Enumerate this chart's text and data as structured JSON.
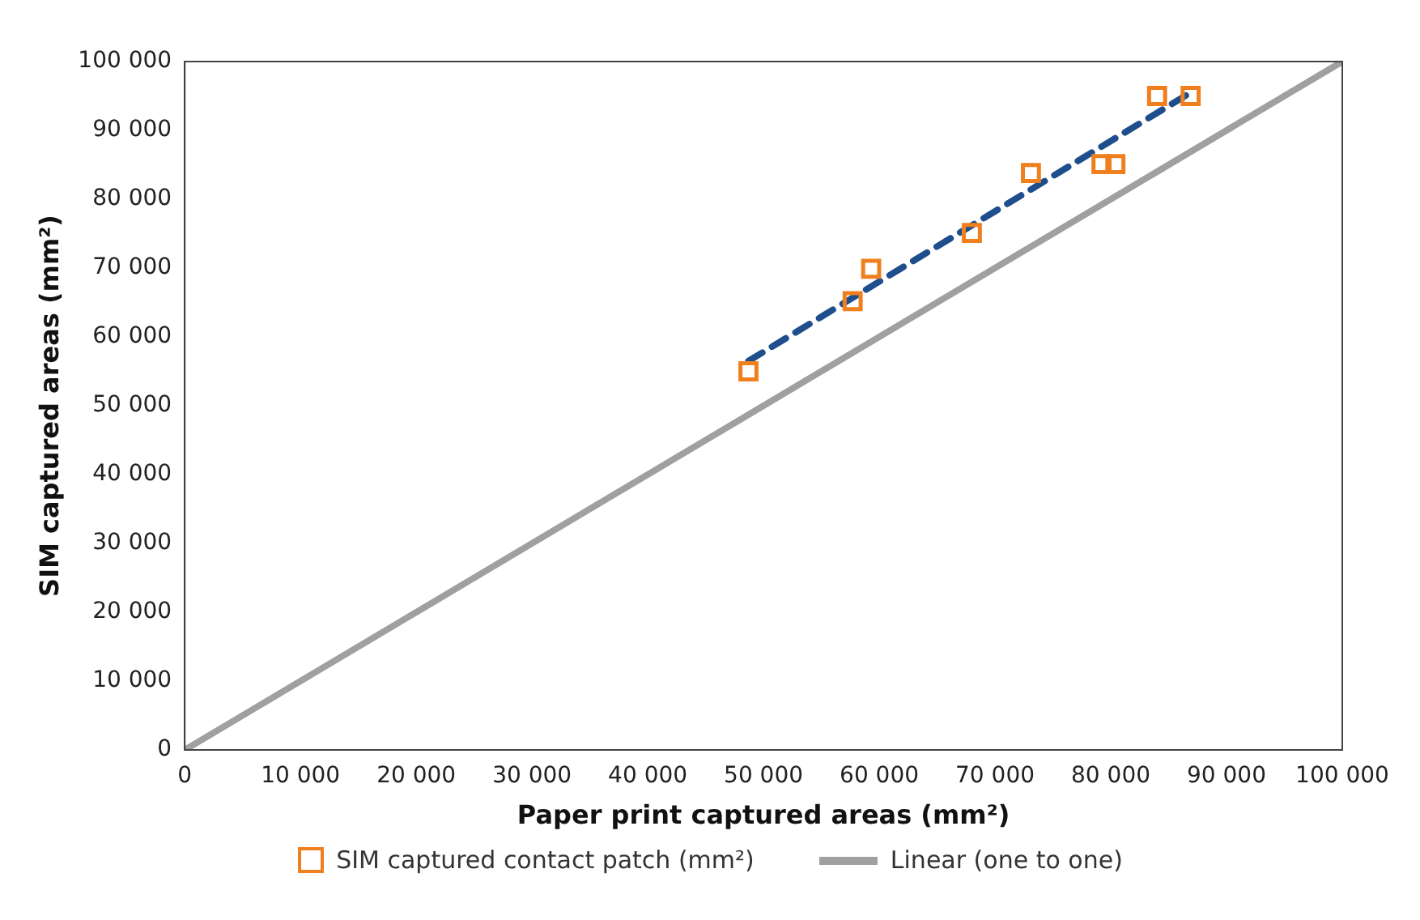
{
  "chart_data": {
    "type": "scatter",
    "xlabel": "Paper print captured areas (mm²)",
    "ylabel": "SIM captured areas (mm²)",
    "xlim": [
      0,
      100000
    ],
    "ylim": [
      0,
      100000
    ],
    "xticks": [
      0,
      {
        "value": 10000,
        "label": "10 000"
      },
      {
        "value": 20000,
        "label": "20 000"
      },
      {
        "value": 30000,
        "label": "30 000"
      },
      {
        "value": 40000,
        "label": "40 000"
      },
      {
        "value": 50000,
        "label": "50 000"
      },
      {
        "value": 60000,
        "label": "60 000"
      },
      {
        "value": 70000,
        "label": "70 000"
      },
      {
        "value": 80000,
        "label": "80 000"
      },
      {
        "value": 90000,
        "label": "90 000"
      },
      {
        "value": 100000,
        "label": "100 000"
      }
    ],
    "yticks": [
      0,
      {
        "value": 10000,
        "label": "10 000"
      },
      {
        "value": 20000,
        "label": "20 000"
      },
      {
        "value": 30000,
        "label": "30 000"
      },
      {
        "value": 40000,
        "label": "40 000"
      },
      {
        "value": 50000,
        "label": "50 000"
      },
      {
        "value": 60000,
        "label": "60 000"
      },
      {
        "value": 70000,
        "label": "70 000"
      },
      {
        "value": 80000,
        "label": "80 000"
      },
      {
        "value": 90000,
        "label": "90 000"
      },
      {
        "value": 100000,
        "label": "100 000"
      }
    ],
    "grid": false,
    "legend": "bottom",
    "series": [
      {
        "name": "SIM captured contact patch (mm²)",
        "marker": "square",
        "color": "#f07f1e",
        "x": [
          48700,
          57700,
          59300,
          68000,
          73100,
          79200,
          80400,
          84000,
          86900
        ],
        "values": [
          55000,
          65200,
          69900,
          75100,
          83800,
          85100,
          85100,
          95000,
          95000
        ]
      },
      {
        "type": "line",
        "marker": "none",
        "line_style": "dashed",
        "color": "#1f4e8c",
        "x": [
          48700,
          86900
        ],
        "values": [
          56500,
          95500
        ]
      },
      {
        "name": "Linear (one to one)",
        "type": "line",
        "marker": "none",
        "line_style": "solid",
        "color": "#a0a0a0",
        "x": [
          0,
          100000
        ],
        "values": [
          0,
          100000
        ]
      }
    ]
  }
}
